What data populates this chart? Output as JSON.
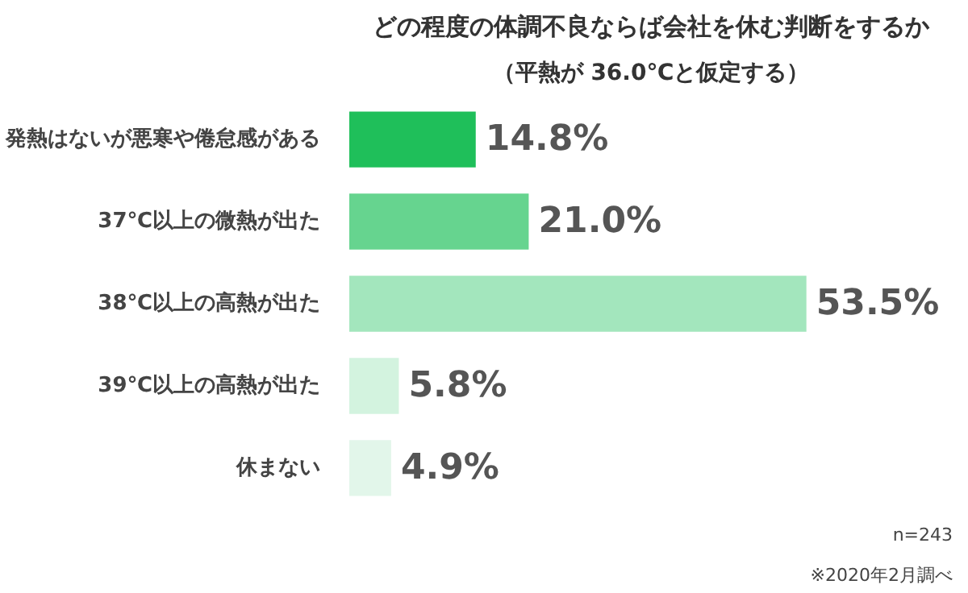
{
  "chart_data": {
    "type": "bar",
    "orientation": "horizontal",
    "title": "どの程度の体調不良ならば会社を休む判断をするか",
    "subtitle": "（平熱が 36.0℃と仮定する）",
    "categories": [
      "発熱はないが悪寒や倦怠感がある",
      "37℃以上の微熱が出た",
      "38℃以上の高熱が出た",
      "39℃以上の高熱が出た",
      "休まない"
    ],
    "values": [
      14.8,
      21.0,
      53.5,
      5.8,
      4.9
    ],
    "colors": [
      "#1fbf5a",
      "#66d48f",
      "#a3e6bd",
      "#d3f3df",
      "#e2f6ea"
    ],
    "value_labels": [
      "14.8%",
      "21.0%",
      "53.5%",
      "5.8%",
      "4.9%"
    ],
    "annotations": [
      "n=243",
      "※2020年2月調べ"
    ]
  }
}
